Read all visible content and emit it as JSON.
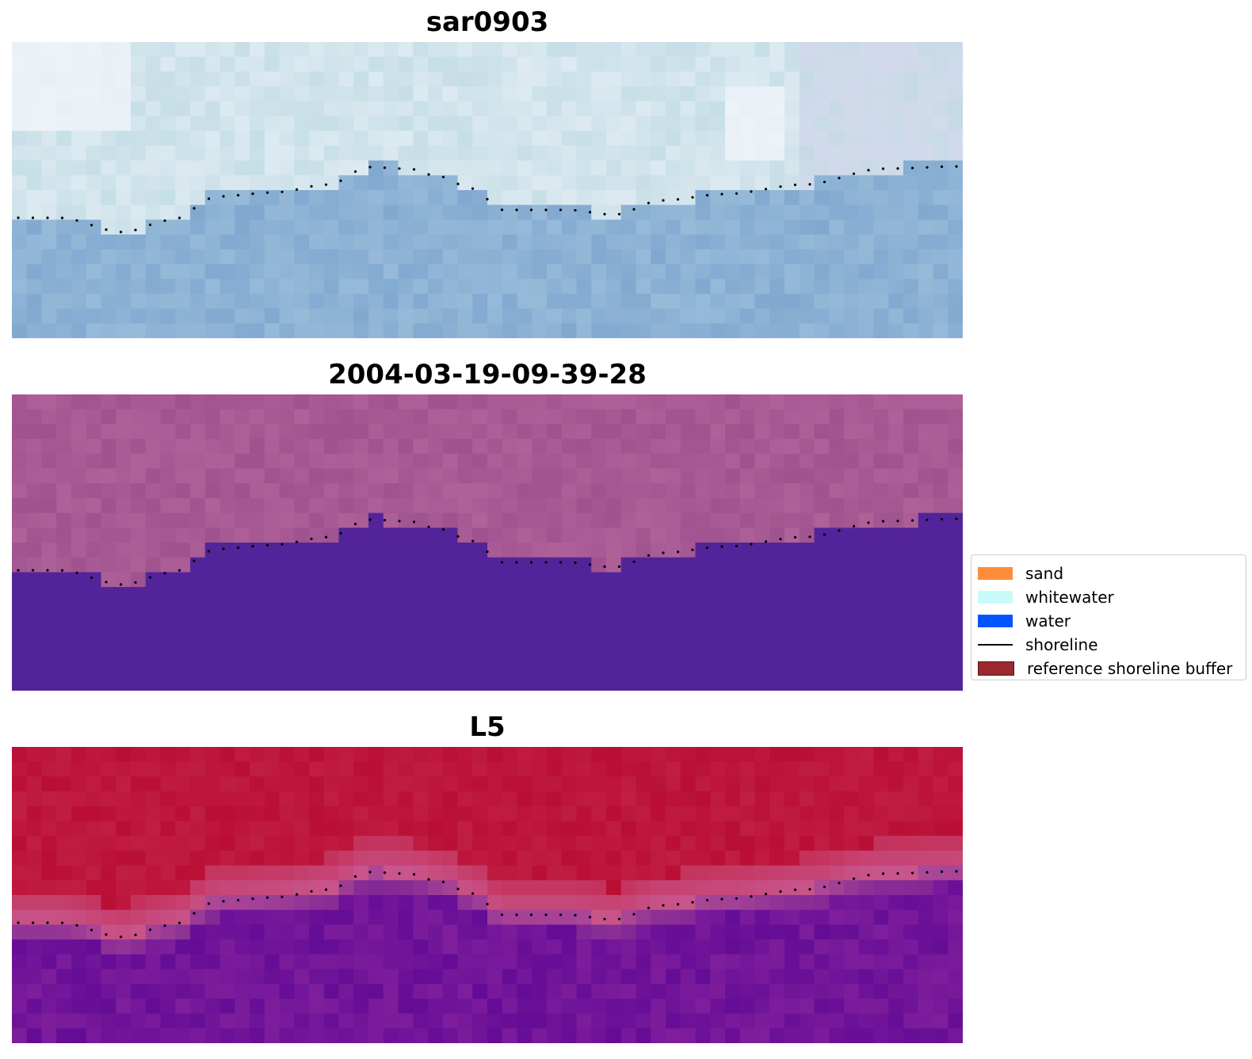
{
  "panels": [
    {
      "title": "sar0903",
      "base_color": "#a4bedc"
    },
    {
      "title": "2004-03-19-09-39-28",
      "base_color": "#9e5590"
    },
    {
      "title": "L5",
      "base_color": "#b81838"
    }
  ],
  "legend": {
    "items": [
      {
        "label": "sand",
        "color": "#ff8c3a",
        "kind": "patch"
      },
      {
        "label": "whitewater",
        "color": "#c8fafa",
        "kind": "patch"
      },
      {
        "label": "water",
        "color": "#0055ff",
        "kind": "patch"
      },
      {
        "label": "shoreline",
        "color": "#000000",
        "kind": "line"
      },
      {
        "label": "reference shoreline buffer",
        "color": "#9a2a30",
        "kind": "patch"
      }
    ]
  }
}
